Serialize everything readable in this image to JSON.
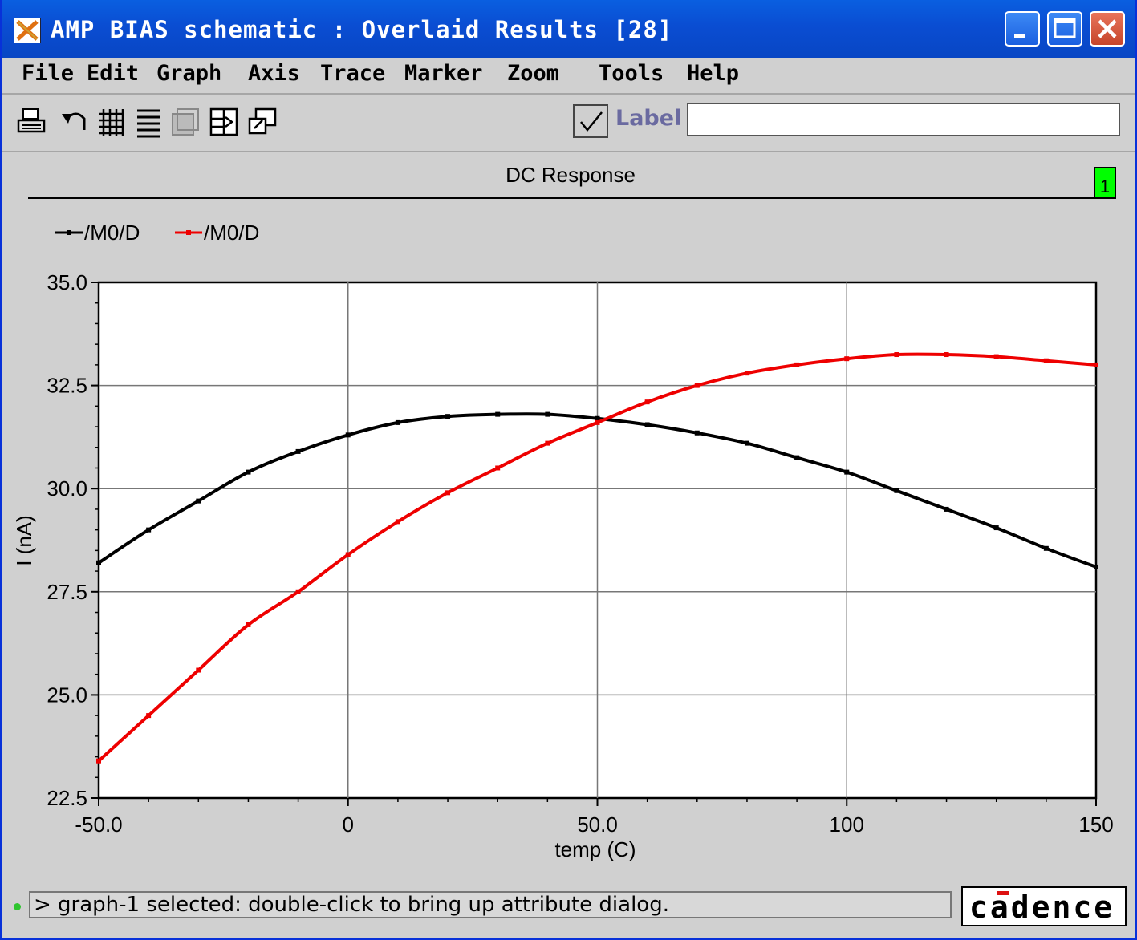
{
  "window": {
    "title": "AMP BIAS schematic : Overlaid Results [28]",
    "title_bar_color": "#0a50d6",
    "buttons": [
      "minimize-icon",
      "maximize-icon",
      "close-icon"
    ]
  },
  "menu": {
    "items": [
      "File",
      "Edit",
      "Graph",
      "Axis",
      "Trace",
      "Marker",
      "Zoom",
      "Tools",
      "Help"
    ]
  },
  "toolbar": {
    "icons": [
      "print-icon",
      "undo-icon",
      "grid-icon",
      "strip-icon",
      "overlay-icon",
      "split-icon",
      "window-icon"
    ],
    "label_checkbox_checked": true,
    "label_text": "Label",
    "label_value": ""
  },
  "graph": {
    "subwindow_badge": "1",
    "badge_color": "#00ff00"
  },
  "chart_data": {
    "type": "line",
    "title": "DC Response",
    "xlabel": "temp (C)",
    "ylabel": "I (nA)",
    "xlim": [
      -50,
      150
    ],
    "ylim": [
      22.5,
      35.0
    ],
    "x_ticks": [
      "-50.0",
      "0",
      "50.0",
      "100",
      "150"
    ],
    "y_ticks": [
      "22.5",
      "25.0",
      "27.5",
      "30.0",
      "32.5",
      "35.0"
    ],
    "grid": true,
    "legend": "top-left",
    "x": [
      -50,
      -40,
      -30,
      -20,
      -10,
      0,
      10,
      20,
      30,
      40,
      50,
      60,
      70,
      80,
      90,
      100,
      110,
      120,
      130,
      140,
      150
    ],
    "series": [
      {
        "name": "/M0/D",
        "color": "#000000",
        "values": [
          28.2,
          29.0,
          29.7,
          30.4,
          30.9,
          31.3,
          31.6,
          31.75,
          31.8,
          31.8,
          31.7,
          31.55,
          31.35,
          31.1,
          30.75,
          30.4,
          29.95,
          29.5,
          29.05,
          28.55,
          28.1
        ]
      },
      {
        "name": "/M0/D",
        "color": "#ee0000",
        "values": [
          23.4,
          24.5,
          25.6,
          26.7,
          27.5,
          28.4,
          29.2,
          29.9,
          30.5,
          31.1,
          31.6,
          32.1,
          32.5,
          32.8,
          33.0,
          33.15,
          33.25,
          33.25,
          33.2,
          33.1,
          33.0
        ]
      }
    ]
  },
  "status": {
    "message": "> graph-1 selected: double-click to bring up attribute dialog.",
    "logo": "cadence"
  }
}
